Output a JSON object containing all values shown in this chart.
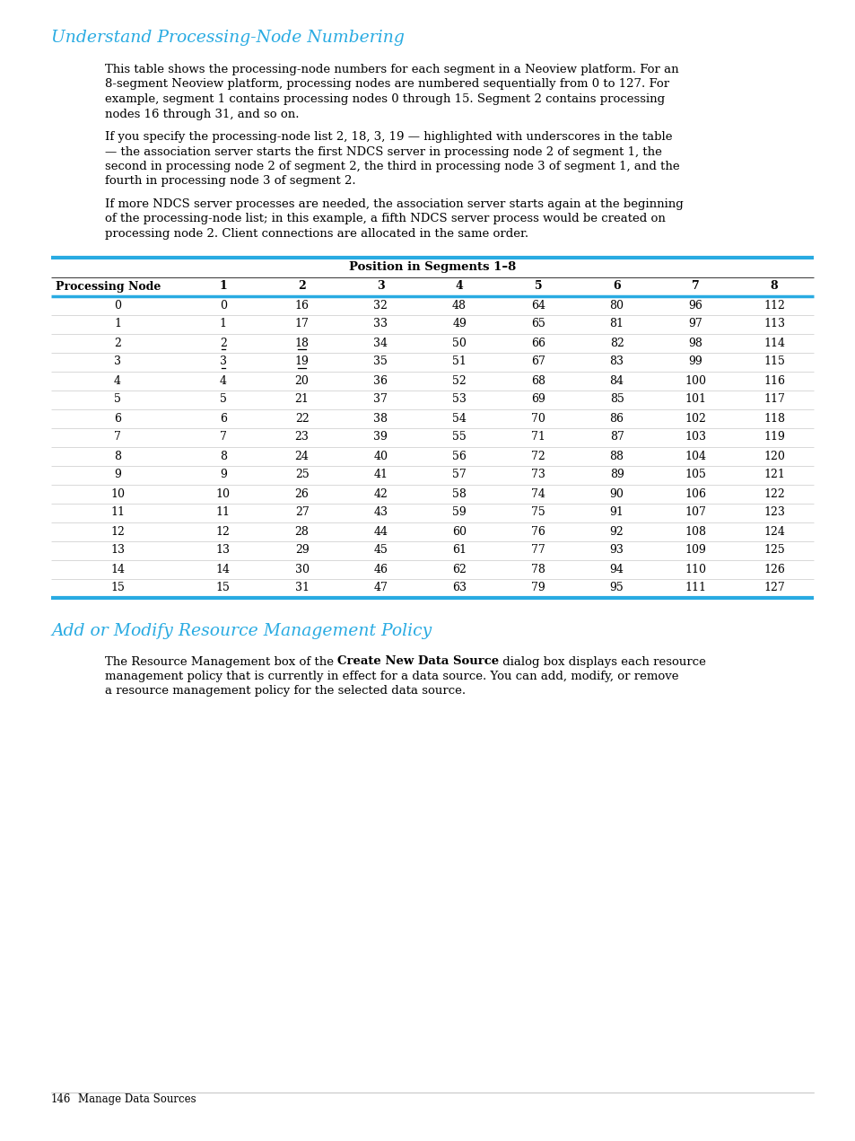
{
  "title1": "Understand Processing-Node Numbering",
  "title1_color": "#29ABE2",
  "para1_lines": [
    "This table shows the processing-node numbers for each segment in a Neoview platform. For an",
    "8-segment Neoview platform, processing nodes are numbered sequentially from 0 to 127. For",
    "example, segment 1 contains processing nodes 0 through 15. Segment 2 contains processing",
    "nodes 16 through 31, and so on."
  ],
  "para2_lines": [
    "If you specify the processing-node list 2, 18, 3, 19 — highlighted with underscores in the table",
    "— the association server starts the first NDCS server in processing node 2 of segment 1, the",
    "second in processing node 2 of segment 2, the third in processing node 3 of segment 1, and the",
    "fourth in processing node 3 of segment 2."
  ],
  "para3_lines": [
    "If more NDCS server processes are needed, the association server starts again at the beginning",
    "of the processing-node list; in this example, a fifth NDCS server process would be created on",
    "processing node 2. Client connections are allocated in the same order."
  ],
  "table_header_merged": "Position in Segments 1–8",
  "table_col_headers": [
    "Processing Node",
    "1",
    "2",
    "3",
    "4",
    "5",
    "6",
    "7",
    "8"
  ],
  "table_data": [
    [
      0,
      0,
      16,
      32,
      48,
      64,
      80,
      96,
      112
    ],
    [
      1,
      1,
      17,
      33,
      49,
      65,
      81,
      97,
      113
    ],
    [
      2,
      2,
      18,
      34,
      50,
      66,
      82,
      98,
      114
    ],
    [
      3,
      3,
      19,
      35,
      51,
      67,
      83,
      99,
      115
    ],
    [
      4,
      4,
      20,
      36,
      52,
      68,
      84,
      100,
      116
    ],
    [
      5,
      5,
      21,
      37,
      53,
      69,
      85,
      101,
      117
    ],
    [
      6,
      6,
      22,
      38,
      54,
      70,
      86,
      102,
      118
    ],
    [
      7,
      7,
      23,
      39,
      55,
      71,
      87,
      103,
      119
    ],
    [
      8,
      8,
      24,
      40,
      56,
      72,
      88,
      104,
      120
    ],
    [
      9,
      9,
      25,
      41,
      57,
      73,
      89,
      105,
      121
    ],
    [
      10,
      10,
      26,
      42,
      58,
      74,
      90,
      106,
      122
    ],
    [
      11,
      11,
      27,
      43,
      59,
      75,
      91,
      107,
      123
    ],
    [
      12,
      12,
      28,
      44,
      60,
      76,
      92,
      108,
      124
    ],
    [
      13,
      13,
      29,
      45,
      61,
      77,
      93,
      109,
      125
    ],
    [
      14,
      14,
      30,
      46,
      62,
      78,
      94,
      110,
      126
    ],
    [
      15,
      15,
      31,
      47,
      63,
      79,
      95,
      111,
      127
    ]
  ],
  "underlined_cells": [
    [
      2,
      1
    ],
    [
      2,
      2
    ],
    [
      3,
      1
    ],
    [
      3,
      2
    ]
  ],
  "title2": "Add or Modify Resource Management Policy",
  "title2_color": "#29ABE2",
  "para4_line1_before": "The Resource Management box of the ",
  "para4_line1_bold": "Create New Data Source",
  "para4_line1_after": " dialog box displays each resource",
  "para4_line2": "management policy that is currently in effect for a data source. You can add, modify, or remove",
  "para4_line3": "a resource management policy for the selected data source.",
  "footer_page": "146",
  "footer_text": "Manage Data Sources",
  "accent_color": "#29ABE2",
  "bg_color": "#ffffff",
  "text_color": "#000000",
  "body_font_size": 9.5,
  "title_font_size": 13.5,
  "table_font_size": 9.0
}
